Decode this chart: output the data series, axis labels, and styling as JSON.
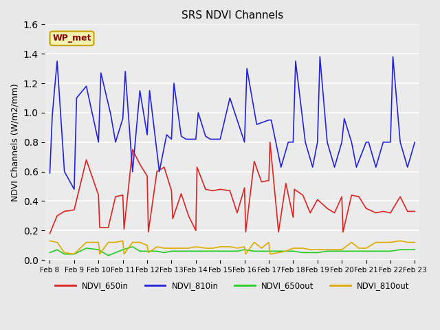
{
  "title": "SRS NDVI Channels",
  "ylabel": "NDVI Channels (W/m2/mm)",
  "ylim": [
    0.0,
    1.6
  ],
  "yticks": [
    0.0,
    0.2,
    0.4,
    0.6,
    0.8,
    1.0,
    1.2,
    1.4,
    1.6
  ],
  "fig_bg": "#e8e8e8",
  "plot_bg": "#ebebeb",
  "annotation_text": "WP_met",
  "annotation_color": "#8b0000",
  "annotation_bg": "#f5f5b0",
  "annotation_border": "#c8a000",
  "x_labels": [
    "Feb 8",
    "Feb 9",
    "Feb 10",
    "Feb 11",
    "Feb 12",
    "Feb 13",
    "Feb 14",
    "Feb 15",
    "Feb 16",
    "Feb 17",
    "Feb 18",
    "Feb 19",
    "Feb 20",
    "Feb 21",
    "Feb 22",
    "Feb 23"
  ],
  "colors": {
    "NDVI_650in": "#dd2222",
    "NDVI_810in": "#2222dd",
    "NDVI_650out": "#22cc22",
    "NDVI_810out": "#ddaa00"
  },
  "linewidth": 1.2,
  "x_650in": [
    0.0,
    0.3,
    0.6,
    1.0,
    1.5,
    2.0,
    2.05,
    2.4,
    2.7,
    3.0,
    3.05,
    3.4,
    3.7,
    4.0,
    4.05,
    4.4,
    4.7,
    5.0,
    5.05,
    5.4,
    5.7,
    6.0,
    6.05,
    6.4,
    6.7,
    7.0,
    7.4,
    7.7,
    8.0,
    8.05,
    8.4,
    8.7,
    9.0,
    9.05,
    9.4,
    9.7,
    10.0,
    10.05,
    10.4,
    10.7,
    11.0,
    11.4,
    11.7,
    12.0,
    12.05,
    12.4,
    12.7,
    13.0,
    13.4,
    13.7,
    14.0,
    14.4,
    14.7,
    15.0
  ],
  "y_650in": [
    0.18,
    0.3,
    0.33,
    0.34,
    0.68,
    0.44,
    0.22,
    0.22,
    0.43,
    0.44,
    0.21,
    0.75,
    0.65,
    0.57,
    0.19,
    0.6,
    0.63,
    0.47,
    0.28,
    0.45,
    0.3,
    0.2,
    0.63,
    0.48,
    0.47,
    0.48,
    0.47,
    0.32,
    0.49,
    0.19,
    0.67,
    0.53,
    0.54,
    0.8,
    0.19,
    0.52,
    0.29,
    0.48,
    0.44,
    0.32,
    0.41,
    0.35,
    0.32,
    0.43,
    0.19,
    0.44,
    0.43,
    0.35,
    0.32,
    0.33,
    0.32,
    0.43,
    0.33,
    0.33
  ],
  "x_810in": [
    0.0,
    0.1,
    0.2,
    0.3,
    0.6,
    1.0,
    1.1,
    1.5,
    2.0,
    2.1,
    2.5,
    2.7,
    3.0,
    3.1,
    3.4,
    3.7,
    4.0,
    4.1,
    4.5,
    4.8,
    5.0,
    5.1,
    5.4,
    5.6,
    5.7,
    6.0,
    6.1,
    6.4,
    6.6,
    7.0,
    7.4,
    7.7,
    8.0,
    8.1,
    8.5,
    9.0,
    9.1,
    9.5,
    9.8,
    10.0,
    10.1,
    10.5,
    10.8,
    11.0,
    11.1,
    11.4,
    11.7,
    12.0,
    12.1,
    12.4,
    12.6,
    13.0,
    13.1,
    13.4,
    13.7,
    14.0,
    14.1,
    14.4,
    14.7,
    15.0
  ],
  "y_810in": [
    0.59,
    0.98,
    1.17,
    1.35,
    0.6,
    0.48,
    1.1,
    1.18,
    0.8,
    1.27,
    0.99,
    0.8,
    0.96,
    1.28,
    0.6,
    1.15,
    0.85,
    1.15,
    0.6,
    0.85,
    0.82,
    1.2,
    0.84,
    0.82,
    0.82,
    0.82,
    1.0,
    0.84,
    0.82,
    0.82,
    1.1,
    0.95,
    0.8,
    1.3,
    0.92,
    0.95,
    0.95,
    0.63,
    0.8,
    0.8,
    1.35,
    0.8,
    0.63,
    0.8,
    1.38,
    0.8,
    0.63,
    0.8,
    0.96,
    0.8,
    0.63,
    0.8,
    0.8,
    0.63,
    0.8,
    0.8,
    1.38,
    0.8,
    0.63,
    0.8
  ],
  "x_650out": [
    0.0,
    0.3,
    0.6,
    1.0,
    1.5,
    2.0,
    2.4,
    2.7,
    3.0,
    3.4,
    3.7,
    4.0,
    4.4,
    4.7,
    5.0,
    5.4,
    5.7,
    6.0,
    6.4,
    6.7,
    7.0,
    7.4,
    7.7,
    8.0,
    8.4,
    8.7,
    9.0,
    9.4,
    9.7,
    10.0,
    10.4,
    10.7,
    11.0,
    11.4,
    11.7,
    12.0,
    12.4,
    12.7,
    13.0,
    13.4,
    13.7,
    14.0,
    14.4,
    14.7,
    15.0
  ],
  "y_650out": [
    0.05,
    0.07,
    0.04,
    0.04,
    0.08,
    0.07,
    0.03,
    0.05,
    0.07,
    0.09,
    0.06,
    0.06,
    0.06,
    0.05,
    0.06,
    0.06,
    0.06,
    0.06,
    0.06,
    0.06,
    0.06,
    0.06,
    0.06,
    0.07,
    0.06,
    0.06,
    0.06,
    0.06,
    0.06,
    0.06,
    0.05,
    0.05,
    0.05,
    0.06,
    0.06,
    0.06,
    0.06,
    0.06,
    0.06,
    0.06,
    0.06,
    0.06,
    0.07,
    0.07,
    0.07
  ],
  "x_810out": [
    0.0,
    0.3,
    0.6,
    1.0,
    1.5,
    2.0,
    2.05,
    2.4,
    2.7,
    3.0,
    3.05,
    3.4,
    3.7,
    4.0,
    4.05,
    4.4,
    4.7,
    5.0,
    5.4,
    5.7,
    6.0,
    6.4,
    6.7,
    7.0,
    7.4,
    7.7,
    8.0,
    8.05,
    8.4,
    8.7,
    9.0,
    9.05,
    9.4,
    9.7,
    10.0,
    10.4,
    10.7,
    11.0,
    11.4,
    11.7,
    12.0,
    12.4,
    12.7,
    13.0,
    13.4,
    13.7,
    14.0,
    14.4,
    14.7,
    15.0
  ],
  "y_810out": [
    0.13,
    0.12,
    0.05,
    0.04,
    0.12,
    0.12,
    0.04,
    0.12,
    0.12,
    0.13,
    0.04,
    0.12,
    0.12,
    0.1,
    0.05,
    0.09,
    0.08,
    0.08,
    0.08,
    0.08,
    0.09,
    0.08,
    0.08,
    0.09,
    0.09,
    0.08,
    0.09,
    0.04,
    0.12,
    0.08,
    0.12,
    0.04,
    0.05,
    0.06,
    0.08,
    0.08,
    0.07,
    0.07,
    0.07,
    0.07,
    0.07,
    0.12,
    0.08,
    0.08,
    0.12,
    0.12,
    0.12,
    0.13,
    0.12,
    0.12
  ]
}
